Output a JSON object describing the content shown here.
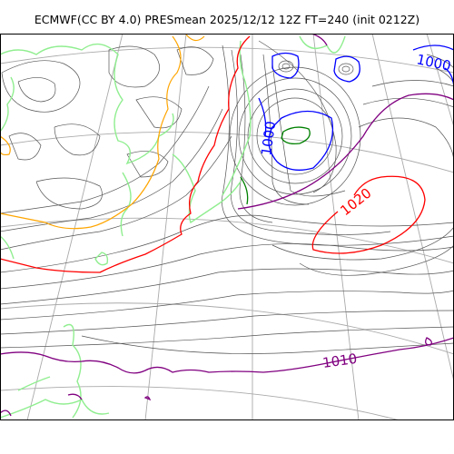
{
  "title": "ECMWF(CC BY 4.0) PRESmean 2025/12/12 12Z FT=240 (init 0212Z)",
  "contour_labels": {
    "l1000_upper": "1000",
    "l1000_center": "1000",
    "l1020": "1020",
    "l1010": "1010"
  },
  "colors": {
    "isobar": "#555555",
    "coast": "#90ee90",
    "low_1000": "#0000ff",
    "high_1020": "#ff0000",
    "iso_1010": "#800080",
    "iso_1008": "#ffa500",
    "iso_996": "#008000",
    "graticule": "#aaaaaa"
  }
}
